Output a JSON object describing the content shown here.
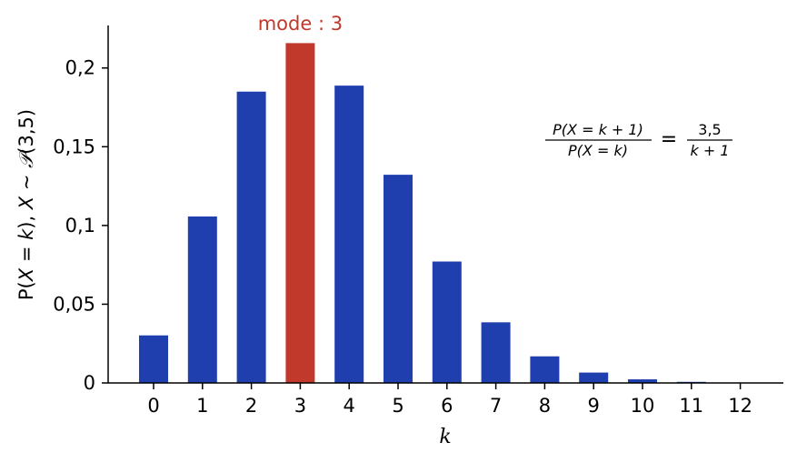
{
  "chart_data": {
    "type": "bar",
    "categories": [
      "0",
      "1",
      "2",
      "3",
      "4",
      "5",
      "6",
      "7",
      "8",
      "9",
      "10",
      "11",
      "12"
    ],
    "values": [
      0.0302,
      0.1057,
      0.185,
      0.2158,
      0.1888,
      0.1322,
      0.0771,
      0.0385,
      0.0169,
      0.0066,
      0.0023,
      0.0007,
      0.0002
    ],
    "mode_index": 3,
    "mode_label": "mode : 3",
    "xlabel": "k",
    "ylabel_parts": [
      "P(",
      "X",
      " = ",
      "k",
      "), ",
      "X",
      " ~ ",
      "𝒫",
      "(3,5)"
    ],
    "ylim": [
      0,
      0.227
    ],
    "yticks": [
      0,
      0.05,
      0.1,
      0.15,
      0.2
    ],
    "ytick_labels": [
      "0",
      "0,05",
      "0,1",
      "0,15",
      "0,2"
    ],
    "formula": {
      "lhs_num": "P(X = k + 1)",
      "lhs_den": "P(X = k)",
      "eq": "=",
      "rhs_num": "3,5",
      "rhs_den": "k + 1"
    },
    "colors": {
      "bar": "#1f3fae",
      "mode_bar": "#c0392b",
      "mode_text": "#c0392b"
    },
    "grid": false
  }
}
